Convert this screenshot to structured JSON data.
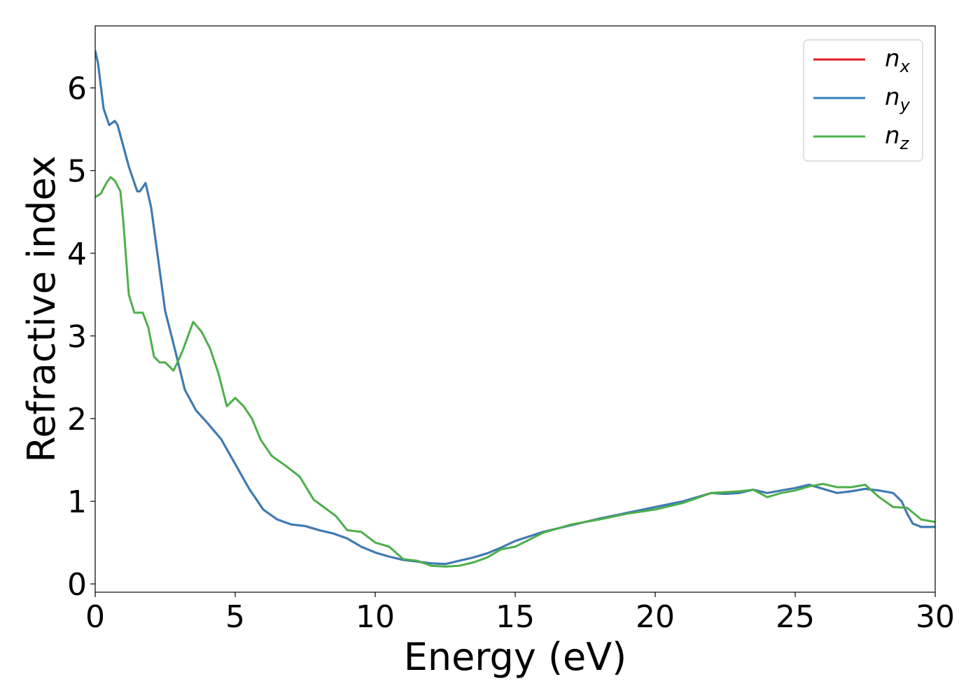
{
  "chart_data": {
    "type": "line",
    "xlabel": "Energy (eV)",
    "ylabel": "Refractive index",
    "xlim": [
      0,
      30
    ],
    "ylim": [
      -0.1,
      6.75
    ],
    "xticks": [
      "0",
      "5",
      "10",
      "15",
      "20",
      "25",
      "30"
    ],
    "yticks": [
      "0",
      "1",
      "2",
      "3",
      "4",
      "5",
      "6"
    ],
    "legend_position": "top-right",
    "series": [
      {
        "name": "n",
        "subscript": "x",
        "color": "#e41a1c",
        "x": [
          0,
          0.1,
          0.3,
          0.5,
          0.7,
          0.8,
          1.0,
          1.2,
          1.5,
          1.6,
          1.8,
          2.0,
          2.2,
          2.5,
          2.8,
          3.2,
          3.6,
          4.0,
          4.5,
          5.0,
          5.5,
          6.0,
          6.5,
          7.0,
          7.5,
          8.0,
          8.5,
          9.0,
          9.5,
          10.0,
          10.5,
          11.0,
          11.5,
          12.0,
          12.5,
          13.0,
          13.5,
          14.0,
          14.5,
          15.0,
          16.0,
          17.0,
          18.0,
          19.0,
          20.0,
          21.0,
          22.0,
          22.5,
          23.0,
          23.5,
          24.0,
          24.5,
          25.0,
          25.5,
          26.0,
          26.5,
          27.0,
          27.5,
          28.0,
          28.5,
          28.8,
          29.0,
          29.2,
          29.5,
          30.0
        ],
        "y": [
          6.45,
          6.3,
          5.75,
          5.55,
          5.6,
          5.55,
          5.3,
          5.05,
          4.75,
          4.75,
          4.85,
          4.55,
          4.05,
          3.3,
          2.9,
          2.35,
          2.1,
          1.95,
          1.75,
          1.45,
          1.15,
          0.9,
          0.78,
          0.72,
          0.7,
          0.65,
          0.61,
          0.55,
          0.45,
          0.38,
          0.33,
          0.29,
          0.27,
          0.25,
          0.24,
          0.28,
          0.32,
          0.37,
          0.44,
          0.52,
          0.63,
          0.71,
          0.79,
          0.86,
          0.93,
          1.0,
          1.1,
          1.09,
          1.1,
          1.14,
          1.1,
          1.13,
          1.16,
          1.2,
          1.15,
          1.1,
          1.12,
          1.15,
          1.13,
          1.1,
          1.0,
          0.85,
          0.73,
          0.69,
          0.69
        ]
      },
      {
        "name": "n",
        "subscript": "y",
        "color": "#377eb8",
        "x": [
          0,
          0.1,
          0.3,
          0.5,
          0.7,
          0.8,
          1.0,
          1.2,
          1.5,
          1.6,
          1.8,
          2.0,
          2.2,
          2.5,
          2.8,
          3.2,
          3.6,
          4.0,
          4.5,
          5.0,
          5.5,
          6.0,
          6.5,
          7.0,
          7.5,
          8.0,
          8.5,
          9.0,
          9.5,
          10.0,
          10.5,
          11.0,
          11.5,
          12.0,
          12.5,
          13.0,
          13.5,
          14.0,
          14.5,
          15.0,
          16.0,
          17.0,
          18.0,
          19.0,
          20.0,
          21.0,
          22.0,
          22.5,
          23.0,
          23.5,
          24.0,
          24.5,
          25.0,
          25.5,
          26.0,
          26.5,
          27.0,
          27.5,
          28.0,
          28.5,
          28.8,
          29.0,
          29.2,
          29.5,
          30.0
        ],
        "y": [
          6.45,
          6.3,
          5.75,
          5.55,
          5.6,
          5.55,
          5.3,
          5.05,
          4.75,
          4.75,
          4.85,
          4.55,
          4.05,
          3.3,
          2.9,
          2.35,
          2.1,
          1.95,
          1.75,
          1.45,
          1.15,
          0.9,
          0.78,
          0.72,
          0.7,
          0.65,
          0.61,
          0.55,
          0.45,
          0.38,
          0.33,
          0.29,
          0.27,
          0.25,
          0.24,
          0.28,
          0.32,
          0.37,
          0.44,
          0.52,
          0.63,
          0.71,
          0.79,
          0.86,
          0.93,
          1.0,
          1.1,
          1.09,
          1.1,
          1.14,
          1.1,
          1.13,
          1.16,
          1.2,
          1.15,
          1.1,
          1.12,
          1.15,
          1.13,
          1.1,
          1.0,
          0.85,
          0.73,
          0.69,
          0.69
        ]
      },
      {
        "name": "n",
        "subscript": "z",
        "color": "#4daf4a",
        "x": [
          0,
          0.2,
          0.4,
          0.55,
          0.7,
          0.9,
          1.0,
          1.2,
          1.4,
          1.7,
          1.9,
          2.1,
          2.3,
          2.5,
          2.8,
          3.1,
          3.5,
          3.8,
          4.1,
          4.4,
          4.7,
          5.0,
          5.3,
          5.6,
          5.9,
          6.3,
          6.8,
          7.3,
          7.8,
          8.2,
          8.6,
          9.0,
          9.5,
          10.0,
          10.5,
          11.0,
          11.5,
          12.0,
          12.5,
          13.0,
          13.5,
          14.0,
          14.5,
          15.0,
          16.0,
          17.0,
          18.0,
          19.0,
          20.0,
          21.0,
          22.0,
          23.0,
          23.5,
          24.0,
          24.5,
          25.0,
          25.5,
          26.0,
          26.5,
          27.0,
          27.5,
          28.0,
          28.5,
          29.0,
          29.5,
          30.0
        ],
        "y": [
          4.68,
          4.72,
          4.85,
          4.92,
          4.88,
          4.75,
          4.4,
          3.5,
          3.28,
          3.28,
          3.1,
          2.75,
          2.68,
          2.68,
          2.58,
          2.8,
          3.17,
          3.05,
          2.85,
          2.55,
          2.15,
          2.25,
          2.15,
          2.0,
          1.75,
          1.55,
          1.43,
          1.3,
          1.02,
          0.92,
          0.82,
          0.65,
          0.63,
          0.5,
          0.45,
          0.3,
          0.28,
          0.22,
          0.21,
          0.22,
          0.26,
          0.32,
          0.42,
          0.45,
          0.62,
          0.72,
          0.78,
          0.85,
          0.9,
          0.98,
          1.1,
          1.12,
          1.14,
          1.05,
          1.1,
          1.13,
          1.18,
          1.21,
          1.17,
          1.17,
          1.2,
          1.05,
          0.93,
          0.92,
          0.78,
          0.75
        ]
      }
    ]
  }
}
